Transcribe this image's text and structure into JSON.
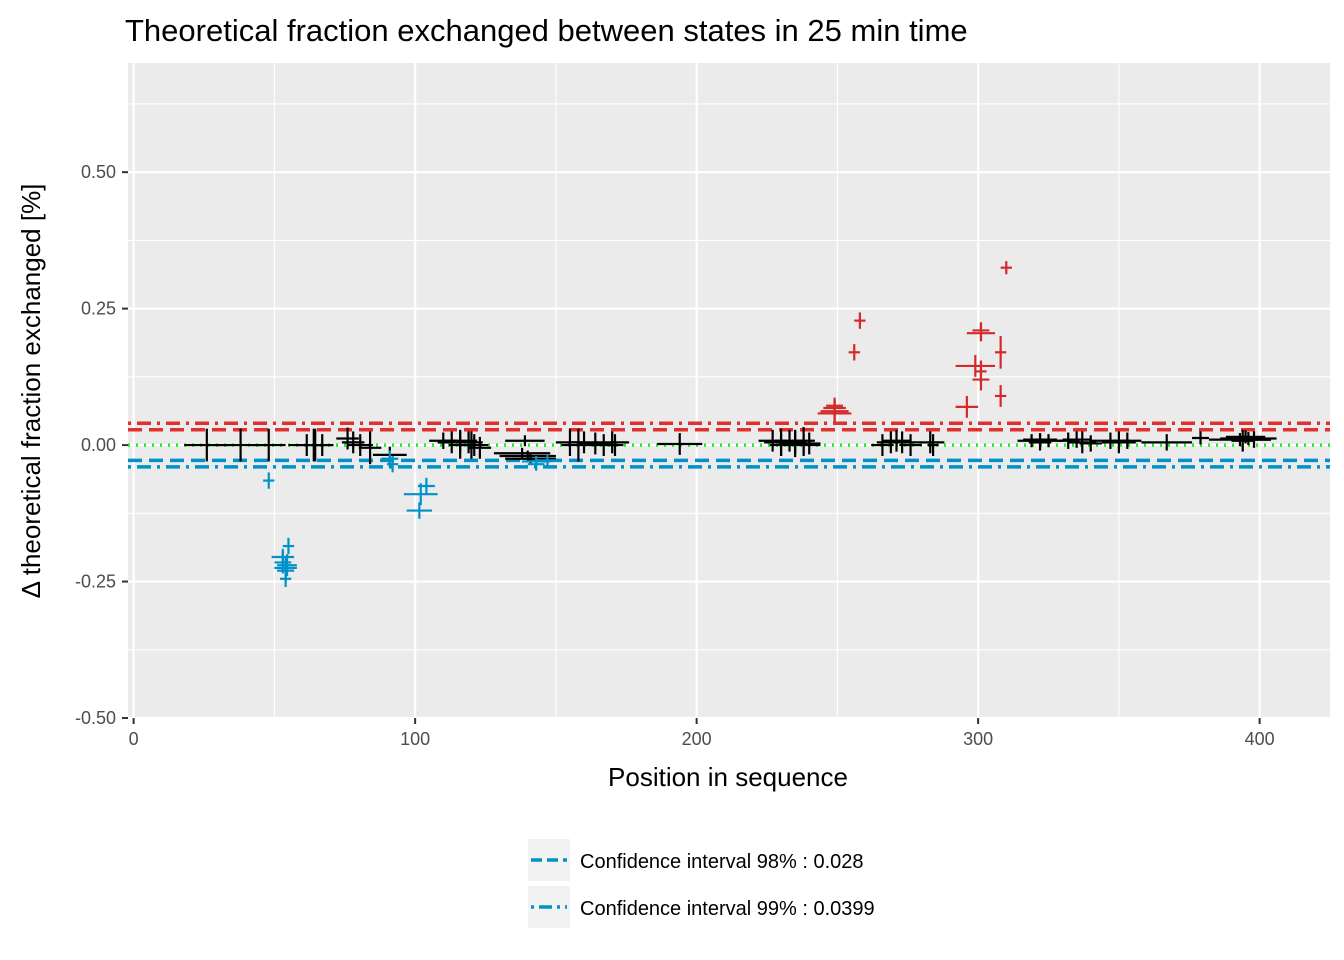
{
  "chart_data": {
    "type": "scatter",
    "title": "Theoretical fraction exchanged between states in 25 min time",
    "xlabel": "Position in sequence",
    "ylabel": "Δ theoretical fraction exchanged [%]",
    "xlim": [
      -2,
      425
    ],
    "ylim": [
      -0.5,
      0.7
    ],
    "xticks": [
      0,
      100,
      200,
      300,
      400
    ],
    "xtick_labels": [
      "0",
      "100",
      "200",
      "300",
      "400"
    ],
    "yticks": [
      -0.5,
      -0.25,
      0,
      0.25,
      0.5
    ],
    "ytick_labels": [
      "-0.50",
      "-0.25",
      "0.00",
      "0.25",
      "0.50"
    ],
    "grid": true,
    "legend_position": "bottom",
    "colors": {
      "panel": "#EBEBEB",
      "grid": "#FFFFFF",
      "neutral": "#000000",
      "negative": "#0091C8",
      "positive": "#D42A2A",
      "zero_line": "#21F021"
    },
    "reference_lines": [
      {
        "y": 0.028,
        "style": "dashed",
        "color": "#E03030"
      },
      {
        "y": 0.0399,
        "style": "dotdash",
        "color": "#E03030"
      },
      {
        "y": -0.028,
        "style": "dashed",
        "color": "#0091C8"
      },
      {
        "y": -0.0399,
        "style": "dotdash",
        "color": "#0091C8"
      },
      {
        "y": 0,
        "style": "dotted",
        "color": "#21F021"
      }
    ],
    "legend": [
      {
        "label": "Confidence interval 98% : 0.028",
        "style": "dashed",
        "color": "#0091C8"
      },
      {
        "label": "Confidence interval 99% : 0.0399",
        "style": "dotdash",
        "color": "#0091C8"
      }
    ],
    "point_fields": [
      "x_start",
      "x_end",
      "y",
      "y_err",
      "class"
    ],
    "points": [
      [
        18,
        34,
        0.0,
        0.03,
        "neutral"
      ],
      [
        28,
        48,
        0.0,
        0.03,
        "neutral"
      ],
      [
        42,
        54,
        0.0,
        0.03,
        "neutral"
      ],
      [
        46,
        50,
        -0.065,
        0.015,
        "negative"
      ],
      [
        49,
        57,
        -0.205,
        0.015,
        "negative"
      ],
      [
        50,
        56,
        -0.215,
        0.02,
        "negative"
      ],
      [
        50,
        58,
        -0.225,
        0.02,
        "negative"
      ],
      [
        51,
        57,
        -0.23,
        0.02,
        "negative"
      ],
      [
        52,
        56,
        -0.245,
        0.015,
        "negative"
      ],
      [
        53,
        57,
        -0.185,
        0.015,
        "negative"
      ],
      [
        51,
        58,
        -0.22,
        0.02,
        "negative"
      ],
      [
        55,
        68,
        0.0,
        0.02,
        "neutral"
      ],
      [
        58,
        71,
        0.0,
        0.03,
        "neutral"
      ],
      [
        61,
        67,
        0.0,
        0.03,
        "neutral"
      ],
      [
        63,
        71,
        0.0,
        0.02,
        "neutral"
      ],
      [
        72,
        80,
        0.012,
        0.02,
        "neutral"
      ],
      [
        74,
        82,
        0.005,
        0.02,
        "neutral"
      ],
      [
        76,
        85,
        0.0,
        0.02,
        "neutral"
      ],
      [
        80,
        88,
        -0.005,
        0.03,
        "neutral"
      ],
      [
        85,
        97,
        -0.018,
        0.015,
        "neutral"
      ],
      [
        88,
        94,
        -0.025,
        0.015,
        "negative"
      ],
      [
        90,
        94,
        -0.035,
        0.015,
        "negative"
      ],
      [
        96,
        108,
        -0.09,
        0.02,
        "negative"
      ],
      [
        97,
        106,
        -0.12,
        0.015,
        "negative"
      ],
      [
        101,
        107,
        -0.075,
        0.015,
        "negative"
      ],
      [
        105,
        115,
        0.008,
        0.015,
        "neutral"
      ],
      [
        108,
        118,
        0.005,
        0.02,
        "neutral"
      ],
      [
        110,
        122,
        0.008,
        0.02,
        "neutral"
      ],
      [
        112,
        120,
        0.0,
        0.025,
        "neutral"
      ],
      [
        114,
        124,
        0.005,
        0.02,
        "neutral"
      ],
      [
        116,
        126,
        0.0,
        0.02,
        "neutral"
      ],
      [
        118,
        122,
        0.0,
        0.025,
        "neutral"
      ],
      [
        119,
        127,
        -0.005,
        0.02,
        "neutral"
      ],
      [
        128,
        148,
        -0.015,
        0.01,
        "neutral"
      ],
      [
        130,
        150,
        -0.02,
        0.01,
        "neutral"
      ],
      [
        132,
        150,
        -0.025,
        0.01,
        "neutral"
      ],
      [
        132,
        146,
        0.008,
        0.01,
        "neutral"
      ],
      [
        138,
        148,
        -0.03,
        0.01,
        "negative"
      ],
      [
        140,
        146,
        -0.035,
        0.012,
        "negative"
      ],
      [
        143,
        151,
        -0.028,
        0.01,
        "negative"
      ],
      [
        150,
        160,
        0.005,
        0.025,
        "neutral"
      ],
      [
        152,
        164,
        0.0,
        0.03,
        "neutral"
      ],
      [
        155,
        165,
        0.005,
        0.02,
        "neutral"
      ],
      [
        158,
        170,
        0.003,
        0.02,
        "neutral"
      ],
      [
        162,
        172,
        0.0,
        0.02,
        "neutral"
      ],
      [
        164,
        176,
        0.005,
        0.02,
        "neutral"
      ],
      [
        168,
        174,
        0.0,
        0.02,
        "neutral"
      ],
      [
        186,
        202,
        0.002,
        0.02,
        "neutral"
      ],
      [
        222,
        232,
        0.008,
        0.02,
        "neutral"
      ],
      [
        224,
        236,
        0.005,
        0.025,
        "neutral"
      ],
      [
        226,
        234,
        0.0,
        0.02,
        "neutral"
      ],
      [
        228,
        238,
        0.008,
        0.02,
        "neutral"
      ],
      [
        229,
        241,
        0.003,
        0.025,
        "neutral"
      ],
      [
        231,
        239,
        0.005,
        0.02,
        "neutral"
      ],
      [
        232,
        244,
        0.0,
        0.02,
        "neutral"
      ],
      [
        234,
        242,
        0.008,
        0.025,
        "neutral"
      ],
      [
        236,
        244,
        0.003,
        0.02,
        "neutral"
      ],
      [
        243,
        255,
        0.058,
        0.015,
        "positive"
      ],
      [
        244,
        254,
        0.062,
        0.02,
        "positive"
      ],
      [
        245,
        253,
        0.068,
        0.015,
        "positive"
      ],
      [
        246,
        252,
        0.072,
        0.015,
        "positive"
      ],
      [
        254,
        258,
        0.17,
        0.015,
        "positive"
      ],
      [
        256,
        260,
        0.228,
        0.015,
        "positive"
      ],
      [
        262,
        270,
        0.0,
        0.02,
        "neutral"
      ],
      [
        264,
        274,
        0.005,
        0.02,
        "neutral"
      ],
      [
        266,
        276,
        0.008,
        0.02,
        "neutral"
      ],
      [
        268,
        278,
        0.005,
        0.02,
        "neutral"
      ],
      [
        272,
        280,
        0.0,
        0.02,
        "neutral"
      ],
      [
        278,
        288,
        0.005,
        0.02,
        "neutral"
      ],
      [
        282,
        286,
        0.0,
        0.02,
        "neutral"
      ],
      [
        292,
        300,
        0.07,
        0.02,
        "positive"
      ],
      [
        292,
        306,
        0.145,
        0.02,
        "positive"
      ],
      [
        296,
        306,
        0.205,
        0.015,
        "positive"
      ],
      [
        298,
        304,
        0.21,
        0.015,
        "positive"
      ],
      [
        298,
        304,
        0.12,
        0.02,
        "positive"
      ],
      [
        299,
        303,
        0.135,
        0.02,
        "positive"
      ],
      [
        306,
        310,
        0.09,
        0.02,
        "positive"
      ],
      [
        306,
        310,
        0.17,
        0.03,
        "positive"
      ],
      [
        308,
        312,
        0.325,
        0.012,
        "positive"
      ],
      [
        314,
        324,
        0.008,
        0.012,
        "neutral"
      ],
      [
        316,
        328,
        0.01,
        0.012,
        "neutral"
      ],
      [
        318,
        326,
        0.005,
        0.015,
        "neutral"
      ],
      [
        320,
        330,
        0.008,
        0.012,
        "neutral"
      ],
      [
        328,
        336,
        0.008,
        0.015,
        "neutral"
      ],
      [
        330,
        340,
        0.01,
        0.015,
        "neutral"
      ],
      [
        332,
        342,
        0.005,
        0.02,
        "neutral"
      ],
      [
        336,
        344,
        0.003,
        0.015,
        "neutral"
      ],
      [
        340,
        354,
        0.008,
        0.015,
        "neutral"
      ],
      [
        344,
        356,
        0.005,
        0.02,
        "neutral"
      ],
      [
        348,
        358,
        0.008,
        0.015,
        "neutral"
      ],
      [
        358,
        376,
        0.005,
        0.015,
        "neutral"
      ],
      [
        376,
        382,
        0.013,
        0.012,
        "neutral"
      ],
      [
        382,
        404,
        0.01,
        0.012,
        "neutral"
      ],
      [
        386,
        406,
        0.012,
        0.012,
        "neutral"
      ],
      [
        388,
        402,
        0.015,
        0.012,
        "neutral"
      ],
      [
        390,
        398,
        0.008,
        0.02,
        "neutral"
      ],
      [
        392,
        404,
        0.01,
        0.015,
        "neutral"
      ]
    ]
  }
}
